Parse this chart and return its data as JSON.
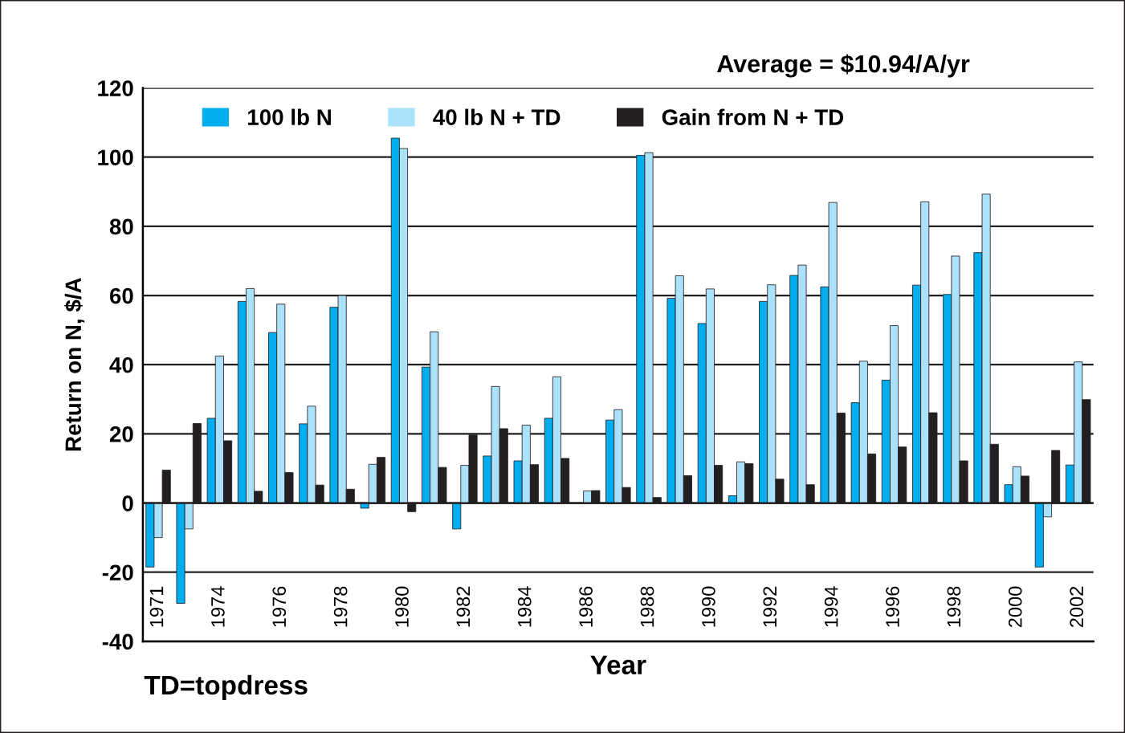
{
  "chart_data": {
    "type": "bar",
    "title": "Average = $10.94/A/yr",
    "xlabel": "Year",
    "ylabel": "Return on N, $/A",
    "annotations": [
      "TD=topdress"
    ],
    "categories": [
      "1971",
      null,
      "1974",
      null,
      "1976",
      null,
      "1978",
      null,
      "1980",
      null,
      "1982",
      null,
      "1984",
      null,
      "1986",
      null,
      "1988",
      null,
      "1990",
      null,
      "1992",
      null,
      "1994",
      null,
      "1996",
      null,
      "1998",
      null,
      "2000",
      null,
      "2002"
    ],
    "series": [
      {
        "name": "100 lb N",
        "color": "#00aeef",
        "values": [
          -18.5,
          -29,
          24.5,
          58.3,
          49.3,
          22.9,
          56.6,
          -1.5,
          105.5,
          39.3,
          -7.5,
          13.6,
          12.2,
          24.5,
          null,
          24,
          100.5,
          59.2,
          51.9,
          2.1,
          58.3,
          65.8,
          62.5,
          29,
          35.5,
          63,
          60.3,
          72.4,
          5.3,
          -18.5,
          11
        ]
      },
      {
        "name": "40 lb N + TD",
        "color": "#abe1fa",
        "values": [
          -10,
          -7.5,
          42.5,
          62,
          57.5,
          28,
          60,
          11.2,
          102.5,
          49.5,
          10.9,
          33.7,
          22.5,
          36.5,
          3.5,
          27,
          101.3,
          65.7,
          61.9,
          11.9,
          63.1,
          68.8,
          86.9,
          41,
          51.3,
          87.1,
          71.4,
          89.3,
          10.5,
          -4,
          40.8
        ]
      },
      {
        "name": "Gain from N + TD",
        "color": "#231f20",
        "values": [
          9.5,
          23,
          18,
          3.4,
          8.8,
          5.2,
          4,
          13.2,
          -2.5,
          10.3,
          19.7,
          21.5,
          11.1,
          12.9,
          3.6,
          4.5,
          1.6,
          7.9,
          10.9,
          11.4,
          6.9,
          5.3,
          26,
          14.2,
          16.2,
          26.1,
          12.2,
          17,
          7.8,
          15.2,
          29.9
        ]
      }
    ],
    "ylim": [
      -40,
      120
    ],
    "yticks": [
      -40,
      -20,
      0,
      20,
      40,
      60,
      80,
      100,
      120
    ],
    "grid": "y",
    "legend": "top"
  }
}
